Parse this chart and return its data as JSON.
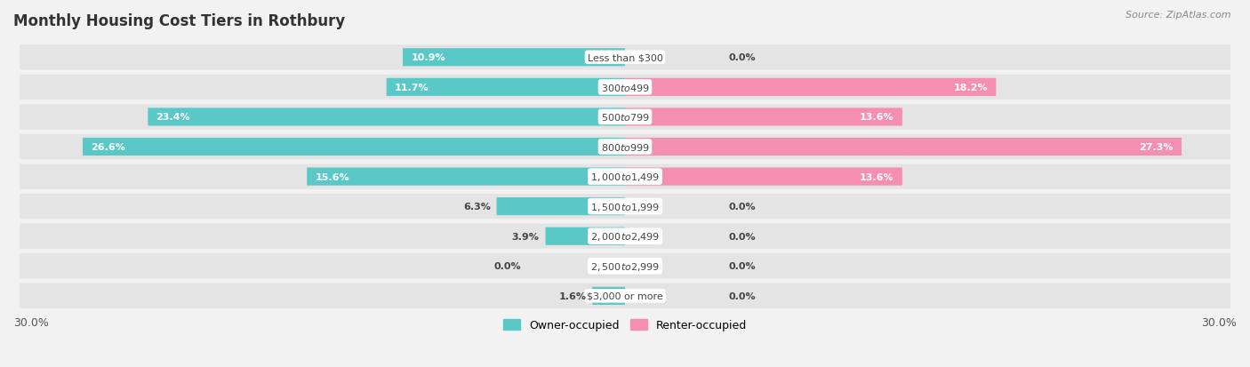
{
  "title": "Monthly Housing Cost Tiers in Rothbury",
  "source": "Source: ZipAtlas.com",
  "categories": [
    "Less than $300",
    "$300 to $499",
    "$500 to $799",
    "$800 to $999",
    "$1,000 to $1,499",
    "$1,500 to $1,999",
    "$2,000 to $2,499",
    "$2,500 to $2,999",
    "$3,000 or more"
  ],
  "owner_values": [
    10.9,
    11.7,
    23.4,
    26.6,
    15.6,
    6.3,
    3.9,
    0.0,
    1.6
  ],
  "renter_values": [
    0.0,
    18.2,
    13.6,
    27.3,
    13.6,
    0.0,
    0.0,
    0.0,
    0.0
  ],
  "owner_color": "#5bc8c8",
  "renter_color": "#f48fb1",
  "owner_label": "Owner-occupied",
  "renter_label": "Renter-occupied",
  "xlim": 30.0,
  "background_color": "#f2f2f2",
  "row_bg_color": "#e4e4e4",
  "title_fontsize": 12,
  "source_fontsize": 8,
  "axis_label_fontsize": 9,
  "bar_height": 0.6,
  "value_fontsize": 8,
  "cat_fontsize": 8
}
